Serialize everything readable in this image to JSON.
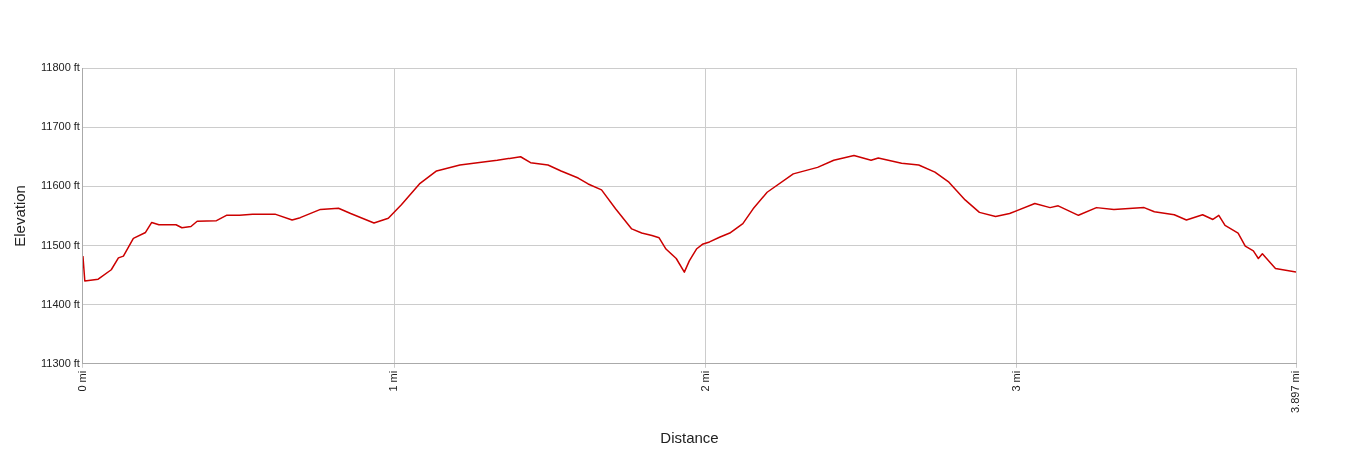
{
  "chart_data": {
    "type": "line",
    "xlabel": "Distance",
    "ylabel": "Elevation",
    "x": [
      0,
      0.006,
      0.049,
      0.091,
      0.114,
      0.13,
      0.162,
      0.201,
      0.221,
      0.244,
      0.299,
      0.318,
      0.347,
      0.367,
      0.429,
      0.461,
      0.503,
      0.545,
      0.617,
      0.672,
      0.698,
      0.763,
      0.821,
      0.86,
      0.935,
      0.981,
      1.023,
      1.081,
      1.136,
      1.211,
      1.299,
      1.331,
      1.406,
      1.438,
      1.494,
      1.536,
      1.591,
      1.623,
      1.666,
      1.711,
      1.763,
      1.795,
      1.828,
      1.851,
      1.873,
      1.906,
      1.932,
      1.948,
      1.971,
      1.99,
      2.013,
      2.045,
      2.078,
      2.12,
      2.153,
      2.198,
      2.282,
      2.36,
      2.412,
      2.477,
      2.532,
      2.555,
      2.63,
      2.685,
      2.737,
      2.782,
      2.834,
      2.88,
      2.932,
      2.977,
      3.058,
      3.107,
      3.133,
      3.198,
      3.256,
      3.312,
      3.409,
      3.442,
      3.506,
      3.545,
      3.597,
      3.63,
      3.649,
      3.669,
      3.711,
      3.734,
      3.76,
      3.776,
      3.789,
      3.831,
      3.897
    ],
    "series": [
      {
        "color": "#cc0000",
        "values": [
          11482,
          11440,
          11443,
          11459,
          11479,
          11482,
          11512,
          11522,
          11539,
          11535,
          11535,
          11530,
          11532,
          11541,
          11542,
          11551,
          11551,
          11553,
          11553,
          11543,
          11547,
          11561,
          11563,
          11554,
          11538,
          11546,
          11569,
          11604,
          11626,
          11636,
          11642,
          11644,
          11650,
          11640,
          11636,
          11626,
          11614,
          11604,
          11594,
          11562,
          11528,
          11521,
          11517,
          11513,
          11494,
          11478,
          11455,
          11474,
          11494,
          11502,
          11506,
          11514,
          11521,
          11537,
          11562,
          11590,
          11621,
          11632,
          11644,
          11652,
          11644,
          11648,
          11639,
          11636,
          11624,
          11607,
          11577,
          11556,
          11549,
          11554,
          11571,
          11564,
          11567,
          11551,
          11564,
          11561,
          11564,
          11557,
          11552,
          11543,
          11552,
          11544,
          11551,
          11534,
          11521,
          11499,
          11491,
          11478,
          11486,
          11461,
          11455
        ]
      }
    ],
    "xlim": [
      0,
      3.897
    ],
    "xticks": [
      {
        "value": 0,
        "label": "0 mi"
      },
      {
        "value": 1,
        "label": "1 mi"
      },
      {
        "value": 2,
        "label": "2 mi"
      },
      {
        "value": 3,
        "label": "3 mi"
      },
      {
        "value": 3.897,
        "label": "3.897 mi"
      }
    ],
    "ylim": [
      11300,
      11800
    ],
    "yticks": [
      {
        "value": 11300,
        "label": "11300 ft"
      },
      {
        "value": 11400,
        "label": "11400 ft"
      },
      {
        "value": 11500,
        "label": "11500 ft"
      },
      {
        "value": 11600,
        "label": "11600 ft"
      },
      {
        "value": 11700,
        "label": "11700 ft"
      },
      {
        "value": 11800,
        "label": "11800 ft"
      }
    ],
    "grid": true,
    "legend": false,
    "marker": "none",
    "line_style": "solid"
  }
}
